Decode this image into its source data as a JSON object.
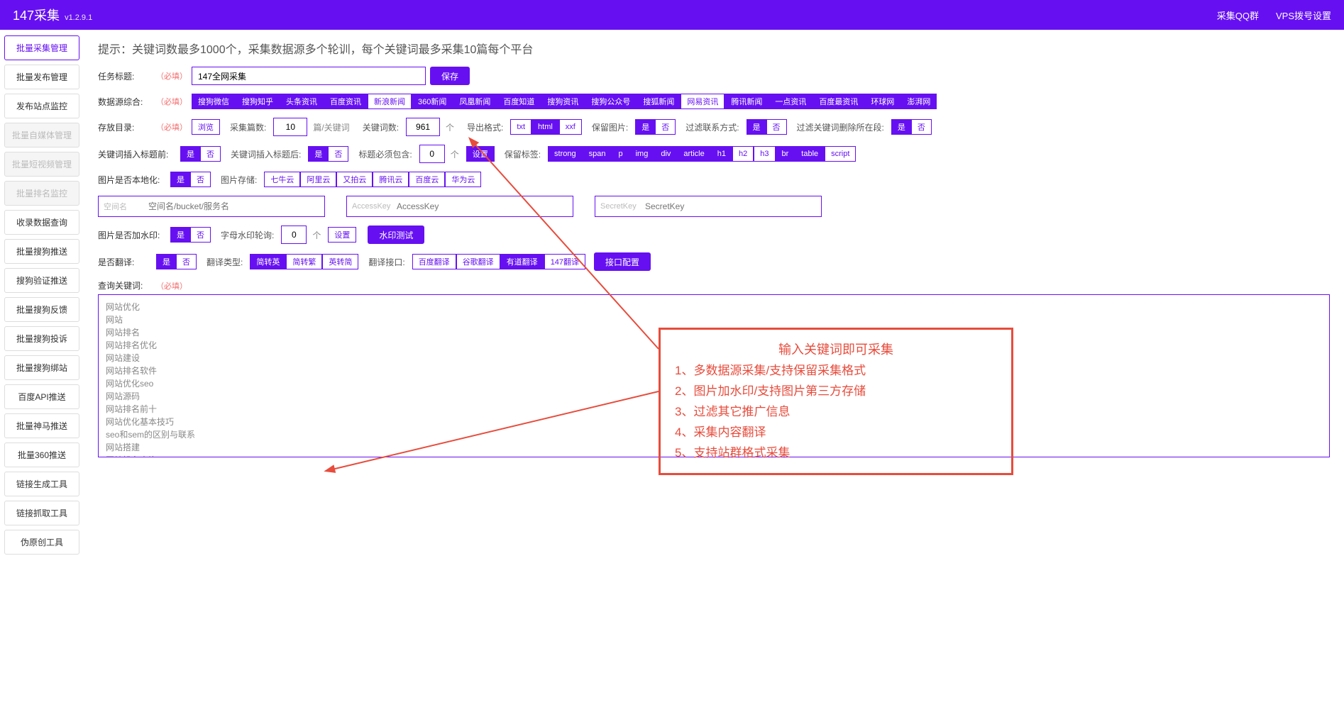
{
  "header": {
    "brand": "147采集",
    "version": "v1.2.9.1",
    "links": [
      "采集QQ群",
      "VPS拨号设置"
    ]
  },
  "sidebar": [
    {
      "label": "批量采集管理",
      "state": "active"
    },
    {
      "label": "批量发布管理",
      "state": ""
    },
    {
      "label": "发布站点监控",
      "state": ""
    },
    {
      "label": "批量自媒体管理",
      "state": "disabled"
    },
    {
      "label": "批量短视频管理",
      "state": "disabled"
    },
    {
      "label": "批量排名监控",
      "state": "disabled"
    },
    {
      "label": "收录数据查询",
      "state": ""
    },
    {
      "label": "批量搜狗推送",
      "state": ""
    },
    {
      "label": "搜狗验证推送",
      "state": ""
    },
    {
      "label": "批量搜狗反馈",
      "state": ""
    },
    {
      "label": "批量搜狗投诉",
      "state": ""
    },
    {
      "label": "批量搜狗绑站",
      "state": ""
    },
    {
      "label": "百度API推送",
      "state": ""
    },
    {
      "label": "批量神马推送",
      "state": ""
    },
    {
      "label": "批量360推送",
      "state": ""
    },
    {
      "label": "链接生成工具",
      "state": ""
    },
    {
      "label": "链接抓取工具",
      "state": ""
    },
    {
      "label": "伪原创工具",
      "state": ""
    }
  ],
  "hint": "提示：关键词数最多1000个，采集数据源多个轮训，每个关键词最多采集10篇每个平台",
  "task": {
    "label": "任务标题:",
    "req": "（必填）",
    "value": "147全网采集",
    "save": "保存"
  },
  "sources": {
    "label": "数据源综合:",
    "req": "（必填）",
    "items": [
      {
        "t": "搜狗微信",
        "on": true
      },
      {
        "t": "搜狗知乎",
        "on": true
      },
      {
        "t": "头条资讯",
        "on": true
      },
      {
        "t": "百度资讯",
        "on": true
      },
      {
        "t": "新浪新闻",
        "on": false
      },
      {
        "t": "360新闻",
        "on": true
      },
      {
        "t": "凤凰新闻",
        "on": true
      },
      {
        "t": "百度知道",
        "on": true
      },
      {
        "t": "搜狗资讯",
        "on": true
      },
      {
        "t": "搜狗公众号",
        "on": true
      },
      {
        "t": "搜狐新闻",
        "on": true
      },
      {
        "t": "网易资讯",
        "on": false
      },
      {
        "t": "腾讯新闻",
        "on": true
      },
      {
        "t": "一点资讯",
        "on": true
      },
      {
        "t": "百度最资讯",
        "on": true
      },
      {
        "t": "环球网",
        "on": true
      },
      {
        "t": "澎湃网",
        "on": true
      }
    ]
  },
  "store": {
    "label": "存放目录:",
    "req": "（必填）",
    "browse": "浏览",
    "countLabel": "采集篇数:",
    "count": "10",
    "countUnit": "篇/关键词",
    "kwLabel": "关键词数:",
    "kw": "961",
    "kwUnit": "个",
    "fmtLabel": "导出格式:",
    "fmts": [
      {
        "t": "txt",
        "on": false
      },
      {
        "t": "html",
        "on": true
      },
      {
        "t": "xxf",
        "on": false
      }
    ],
    "keepImgLabel": "保留图片:",
    "keepImg": "是",
    "filterContactLabel": "过滤联系方式:",
    "filterContact": "是",
    "filterKwSegLabel": "过滤关键词删除所在段:",
    "filterKwSeg": "是"
  },
  "insert": {
    "beforeLabel": "关键词插入标题前:",
    "before": "是",
    "afterLabel": "关键词插入标题后:",
    "after": "是",
    "mustLabel": "标题必须包含:",
    "mustCount": "0",
    "mustUnit": "个",
    "mustBtn": "设置",
    "keepTagLabel": "保留标签:",
    "tags": [
      {
        "t": "strong",
        "on": true
      },
      {
        "t": "span",
        "on": true
      },
      {
        "t": "p",
        "on": true
      },
      {
        "t": "img",
        "on": true
      },
      {
        "t": "div",
        "on": true
      },
      {
        "t": "article",
        "on": true
      },
      {
        "t": "h1",
        "on": true
      },
      {
        "t": "h2",
        "on": false
      },
      {
        "t": "h3",
        "on": false
      },
      {
        "t": "br",
        "on": true
      },
      {
        "t": "table",
        "on": true
      },
      {
        "t": "script",
        "on": false
      }
    ]
  },
  "image": {
    "localLabel": "图片是否本地化:",
    "local": "是",
    "storeLabel": "图片存储:",
    "stores": [
      {
        "t": "七牛云",
        "on": false
      },
      {
        "t": "阿里云",
        "on": false
      },
      {
        "t": "又拍云",
        "on": false
      },
      {
        "t": "腾讯云",
        "on": false
      },
      {
        "t": "百度云",
        "on": false
      },
      {
        "t": "华为云",
        "on": false
      }
    ]
  },
  "cloud": {
    "spaceLabel": "空间名",
    "spacePh": "空间名/bucket/服务名",
    "akLabel": "AccessKey",
    "akPh": "AccessKey",
    "skLabel": "SecretKey",
    "skPh": "SecretKey"
  },
  "watermark": {
    "label": "图片是否加水印:",
    "val": "是",
    "rotLabel": "字母水印轮询:",
    "rot": "0",
    "rotUnit": "个",
    "rotBtn": "设置",
    "test": "水印测试"
  },
  "translate": {
    "label": "是否翻译:",
    "val": "是",
    "typeLabel": "翻译类型:",
    "types": [
      {
        "t": "简转英",
        "on": true
      },
      {
        "t": "简转繁",
        "on": false
      },
      {
        "t": "英转简",
        "on": false
      }
    ],
    "apiLabel": "翻译接口:",
    "apis": [
      {
        "t": "百度翻译",
        "on": false
      },
      {
        "t": "谷歌翻译",
        "on": false
      },
      {
        "t": "有道翻译",
        "on": true
      },
      {
        "t": "147翻译",
        "on": false
      }
    ],
    "cfg": "接口配置"
  },
  "query": {
    "label": "查询关键词:",
    "req": "（必填）",
    "text": "网站优化\n网站\n网站排名\n网站排名优化\n网站建设\n网站排名软件\n网站优化seo\n网站源码\n网站排名前十\n网站优化基本技巧\nseo和sem的区别与联系\n网站搭建\n网站排名查询\n网站优化培训\nseo是什么意思"
  },
  "annotation": {
    "title": "输入关键词即可采集",
    "lines": [
      "1、多数据源采集/支持保留采集格式",
      "2、图片加水印/支持图片第三方存储",
      "3、过滤其它推广信息",
      "4、采集内容翻译",
      "5、支持站群格式采集"
    ]
  },
  "yesNo": {
    "yes": "是",
    "no": "否"
  }
}
